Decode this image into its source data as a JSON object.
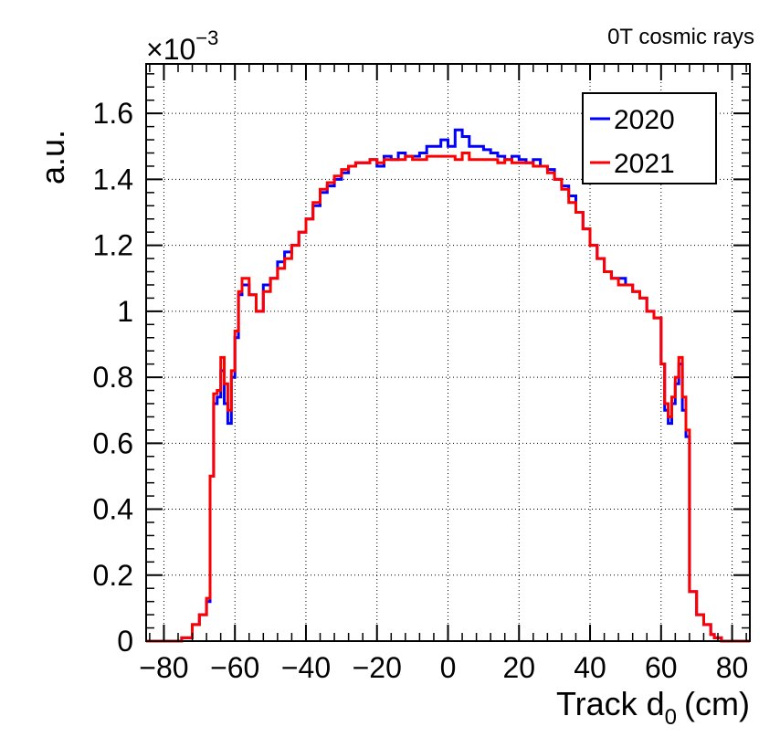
{
  "chart_data": {
    "type": "line",
    "title": "0T cosmic rays",
    "xlabel": "Track d",
    "xlabel_subscript": "0",
    "xlabel_unit": "(cm)",
    "ylabel": "a.u.",
    "y_scale_label": "×10",
    "y_scale_exponent": "−3",
    "xlim": [
      -85,
      85
    ],
    "ylim": [
      0,
      1.75
    ],
    "x_ticks": [
      -80,
      -60,
      -40,
      -20,
      0,
      20,
      40,
      60,
      80
    ],
    "x_tick_labels": [
      "−80",
      "−60",
      "−40",
      "−20",
      "0",
      "20",
      "40",
      "60",
      "80"
    ],
    "y_ticks": [
      0,
      0.2,
      0.4,
      0.6,
      0.8,
      1.0,
      1.2,
      1.4,
      1.6
    ],
    "y_tick_labels": [
      "0",
      "0.2",
      "0.4",
      "0.6",
      "0.8",
      "1",
      "1.2",
      "1.4",
      "1.6"
    ],
    "grid": true,
    "legend_position": "top-right",
    "x": [
      -85,
      -77,
      -75,
      -72,
      -70,
      -68,
      -67,
      -66,
      -65,
      -64,
      -63,
      -62,
      -61,
      -60,
      -59,
      -58,
      -56,
      -54,
      -52,
      -50,
      -48,
      -46,
      -44,
      -42,
      -40,
      -38,
      -36,
      -34,
      -32,
      -30,
      -28,
      -26,
      -24,
      -22,
      -20,
      -18,
      -16,
      -14,
      -12,
      -10,
      -8,
      -6,
      -4,
      -2,
      0,
      2,
      4,
      6,
      8,
      10,
      12,
      14,
      16,
      18,
      20,
      22,
      24,
      26,
      28,
      30,
      32,
      34,
      36,
      38,
      40,
      42,
      44,
      46,
      48,
      50,
      52,
      54,
      56,
      58,
      60,
      61,
      62,
      63,
      64,
      65,
      66,
      67,
      68,
      70,
      72,
      74,
      75,
      77,
      85
    ],
    "series": [
      {
        "name": "2020",
        "color": "#0000ff",
        "values": [
          0,
          0,
          0.01,
          0.05,
          0.08,
          0.12,
          0.5,
          0.72,
          0.74,
          0.82,
          0.72,
          0.66,
          0.8,
          0.92,
          1.05,
          1.08,
          1.05,
          1.0,
          1.08,
          1.1,
          1.15,
          1.18,
          1.2,
          1.24,
          1.28,
          1.32,
          1.36,
          1.38,
          1.4,
          1.42,
          1.44,
          1.45,
          1.45,
          1.46,
          1.44,
          1.47,
          1.46,
          1.48,
          1.47,
          1.47,
          1.48,
          1.5,
          1.5,
          1.52,
          1.5,
          1.55,
          1.53,
          1.5,
          1.5,
          1.49,
          1.48,
          1.47,
          1.46,
          1.47,
          1.46,
          1.45,
          1.46,
          1.44,
          1.43,
          1.4,
          1.38,
          1.35,
          1.3,
          1.25,
          1.2,
          1.16,
          1.12,
          1.1,
          1.1,
          1.08,
          1.06,
          1.04,
          1.0,
          0.98,
          0.84,
          0.7,
          0.66,
          0.72,
          0.78,
          0.84,
          0.7,
          0.62,
          0.15,
          0.08,
          0.05,
          0.02,
          0.01,
          0,
          0
        ]
      },
      {
        "name": "2021",
        "color": "#ff0000",
        "values": [
          0,
          0,
          0.01,
          0.05,
          0.08,
          0.13,
          0.5,
          0.75,
          0.76,
          0.86,
          0.78,
          0.7,
          0.82,
          0.94,
          1.06,
          1.1,
          1.05,
          1.0,
          1.06,
          1.1,
          1.13,
          1.16,
          1.2,
          1.24,
          1.28,
          1.33,
          1.37,
          1.39,
          1.41,
          1.43,
          1.44,
          1.45,
          1.45,
          1.46,
          1.45,
          1.46,
          1.46,
          1.46,
          1.47,
          1.46,
          1.46,
          1.47,
          1.47,
          1.47,
          1.47,
          1.46,
          1.48,
          1.46,
          1.46,
          1.46,
          1.46,
          1.45,
          1.46,
          1.45,
          1.45,
          1.45,
          1.44,
          1.44,
          1.42,
          1.4,
          1.37,
          1.33,
          1.3,
          1.25,
          1.2,
          1.16,
          1.12,
          1.1,
          1.08,
          1.08,
          1.06,
          1.04,
          1.0,
          0.98,
          0.84,
          0.72,
          0.68,
          0.74,
          0.8,
          0.86,
          0.74,
          0.64,
          0.15,
          0.08,
          0.05,
          0.02,
          0.01,
          0,
          0
        ]
      }
    ]
  }
}
